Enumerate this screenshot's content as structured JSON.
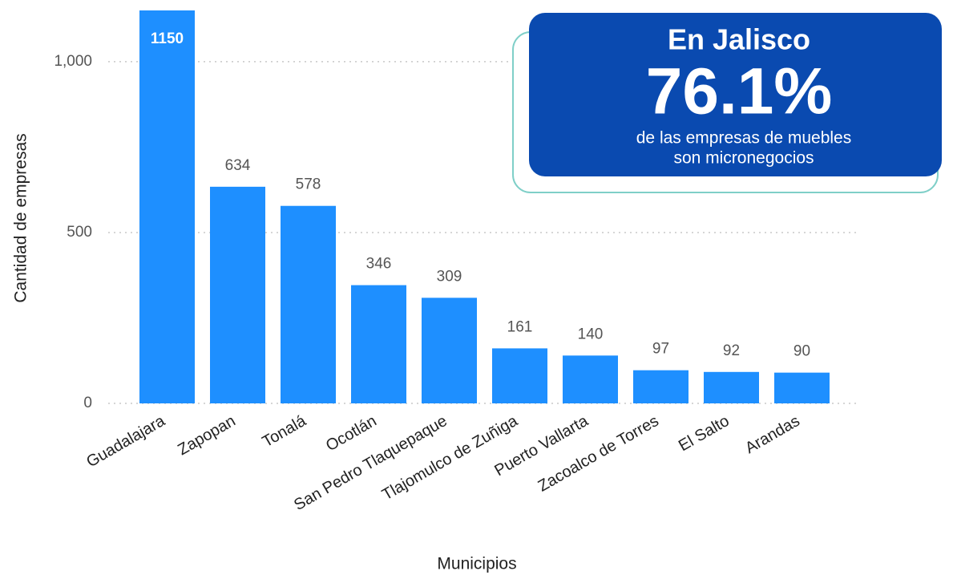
{
  "chart_data": {
    "type": "bar",
    "categories": [
      "Guadalajara",
      "Zapopan",
      "Tonalá",
      "Ocotlán",
      "San Pedro Tlaquepaque",
      "Tlajomulco de Zuñiga",
      "Puerto Vallarta",
      "Zacoalco de Torres",
      "El Salto",
      "Arandas"
    ],
    "values": [
      1150,
      634,
      578,
      346,
      309,
      161,
      140,
      97,
      92,
      90
    ],
    "color": "#1e8fff",
    "ylim": [
      0,
      1150
    ],
    "yticks": [
      0,
      500,
      {
        "value": 1000,
        "label": "1,000"
      }
    ],
    "grid": true,
    "x_label": "Municipios",
    "y_label": "Cantidad de empresas",
    "callout": {
      "heading": "En Jalisco",
      "figure": "76.1%",
      "line1": "de las empresas de muebles",
      "line2": "son micronegocios"
    }
  }
}
